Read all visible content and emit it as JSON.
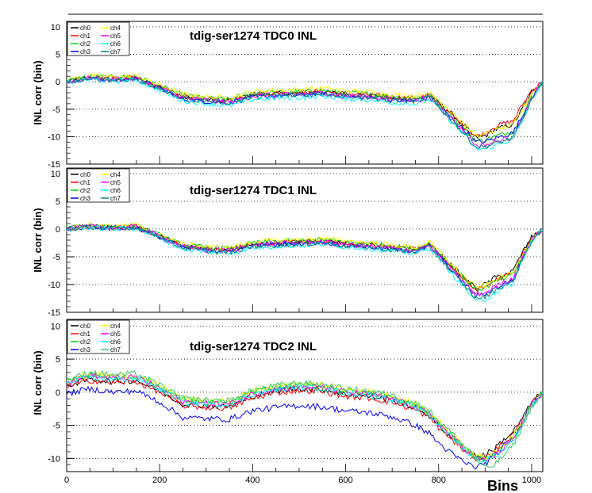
{
  "chart_data": [
    {
      "type": "line",
      "title": "tdig-ser1274 TDC0 INL",
      "ylabel": "INL corr (bin)",
      "xlabel": "",
      "xlim": [
        0,
        1024
      ],
      "ylim": [
        -15,
        11
      ],
      "yticks": [
        -15,
        -10,
        -5,
        0,
        5,
        10
      ],
      "grid": "horizontal-dotted",
      "legend": {
        "placement": "top-left",
        "entries": [
          "ch0",
          "ch1",
          "ch2",
          "ch3",
          "ch4",
          "ch5",
          "ch6",
          "ch7"
        ]
      },
      "x": [
        0,
        50,
        100,
        150,
        200,
        250,
        300,
        350,
        400,
        450,
        500,
        550,
        600,
        650,
        700,
        750,
        780,
        800,
        830,
        860,
        880,
        900,
        920,
        940,
        960,
        980,
        1000,
        1024
      ],
      "series": [
        {
          "name": "ch0",
          "color": "#000000",
          "values": [
            0,
            0.8,
            0.5,
            0.7,
            -1.0,
            -2.8,
            -3.2,
            -3.5,
            -2.3,
            -2.2,
            -2.1,
            -1.8,
            -2.3,
            -2.5,
            -3.0,
            -3.2,
            -2.5,
            -3.8,
            -6.0,
            -8.5,
            -10.2,
            -9.8,
            -8.8,
            -8.2,
            -7.8,
            -5.0,
            -2.0,
            0
          ]
        },
        {
          "name": "ch1",
          "color": "#ff0000",
          "values": [
            0,
            0.8,
            0.6,
            0.8,
            -1.0,
            -2.7,
            -3.2,
            -3.4,
            -2.2,
            -2.0,
            -2.0,
            -1.7,
            -2.2,
            -2.4,
            -2.8,
            -3.0,
            -2.4,
            -3.9,
            -6.2,
            -8.6,
            -10.0,
            -9.3,
            -8.2,
            -7.6,
            -7.2,
            -4.2,
            -1.5,
            0
          ]
        },
        {
          "name": "ch2",
          "color": "#00cc00",
          "values": [
            0.2,
            1.0,
            0.8,
            1.0,
            -0.8,
            -2.5,
            -3.0,
            -3.2,
            -2.0,
            -1.9,
            -1.8,
            -1.6,
            -2.0,
            -2.2,
            -2.7,
            -2.9,
            -2.3,
            -4.0,
            -6.5,
            -9.0,
            -10.8,
            -10.6,
            -10.0,
            -9.5,
            -9.0,
            -6.0,
            -2.5,
            0
          ]
        },
        {
          "name": "ch3",
          "color": "#0000ff",
          "values": [
            0,
            0.6,
            0.3,
            0.5,
            -1.2,
            -3.2,
            -3.6,
            -3.9,
            -2.8,
            -2.6,
            -2.5,
            -2.2,
            -2.7,
            -2.9,
            -3.4,
            -3.6,
            -2.9,
            -4.4,
            -6.8,
            -9.2,
            -11.0,
            -10.9,
            -10.4,
            -9.8,
            -9.3,
            -6.3,
            -2.8,
            0
          ]
        },
        {
          "name": "ch4",
          "color": "#ffff00",
          "values": [
            0.3,
            1.1,
            0.9,
            1.1,
            -0.6,
            -2.2,
            -2.7,
            -3.0,
            -1.7,
            -1.5,
            -1.4,
            -1.2,
            -1.6,
            -1.8,
            -2.3,
            -2.6,
            -2.0,
            -3.3,
            -5.6,
            -8.2,
            -9.8,
            -9.6,
            -8.9,
            -8.4,
            -7.9,
            -5.2,
            -2.1,
            0
          ]
        },
        {
          "name": "ch5",
          "color": "#ff00ff",
          "values": [
            0,
            0.7,
            0.4,
            0.6,
            -1.1,
            -3.0,
            -3.4,
            -3.7,
            -2.6,
            -2.4,
            -2.3,
            -2.0,
            -2.5,
            -2.7,
            -3.2,
            -3.4,
            -2.7,
            -4.4,
            -7.0,
            -9.6,
            -11.6,
            -11.5,
            -11.0,
            -10.5,
            -10.0,
            -6.8,
            -3.0,
            0
          ]
        },
        {
          "name": "ch6",
          "color": "#00ffff",
          "values": [
            -0.2,
            0.4,
            0.1,
            0.3,
            -1.5,
            -3.5,
            -4.0,
            -4.4,
            -3.2,
            -3.0,
            -2.9,
            -2.6,
            -3.1,
            -3.3,
            -3.8,
            -4.0,
            -3.2,
            -4.8,
            -7.5,
            -10.2,
            -12.3,
            -12.2,
            -11.7,
            -11.0,
            -10.5,
            -7.2,
            -3.2,
            -0.2
          ]
        },
        {
          "name": "ch7",
          "color": "#008080",
          "values": [
            0,
            0.6,
            0.3,
            0.5,
            -1.3,
            -3.1,
            -3.5,
            -3.8,
            -2.7,
            -2.5,
            -2.4,
            -2.1,
            -2.6,
            -2.8,
            -3.3,
            -3.5,
            -2.8,
            -4.6,
            -7.2,
            -9.9,
            -11.9,
            -11.8,
            -11.3,
            -10.8,
            -10.2,
            -7.0,
            -3.1,
            0
          ]
        }
      ]
    },
    {
      "type": "line",
      "title": "tdig-ser1274 TDC1 INL",
      "ylabel": "INL corr (bin)",
      "xlabel": "",
      "xlim": [
        0,
        1024
      ],
      "ylim": [
        -15,
        11
      ],
      "yticks": [
        -15,
        -10,
        -5,
        0,
        5,
        10
      ],
      "grid": "horizontal-dotted",
      "legend": {
        "placement": "top-left",
        "entries": [
          "ch0",
          "ch1",
          "ch2",
          "ch3",
          "ch4",
          "ch5",
          "ch6",
          "ch7"
        ]
      },
      "x": [
        0,
        50,
        100,
        150,
        200,
        250,
        300,
        350,
        400,
        450,
        500,
        550,
        600,
        650,
        700,
        750,
        780,
        800,
        830,
        860,
        880,
        900,
        920,
        940,
        960,
        980,
        1000,
        1024
      ],
      "series": [
        {
          "name": "ch0",
          "color": "#000000",
          "values": [
            0,
            0.5,
            0.2,
            0.4,
            -1.3,
            -3.1,
            -3.6,
            -3.8,
            -2.8,
            -2.5,
            -2.4,
            -2.1,
            -2.7,
            -2.9,
            -3.4,
            -3.8,
            -2.8,
            -4.2,
            -6.8,
            -9.2,
            -10.6,
            -10.0,
            -8.8,
            -8.2,
            -7.6,
            -4.2,
            -1.5,
            0
          ]
        },
        {
          "name": "ch1",
          "color": "#ff0000",
          "values": [
            0,
            0.5,
            0.2,
            0.4,
            -1.3,
            -3.1,
            -3.6,
            -3.8,
            -2.7,
            -2.5,
            -2.3,
            -2.1,
            -2.6,
            -2.9,
            -3.3,
            -3.7,
            -2.8,
            -4.4,
            -7.0,
            -9.5,
            -11.0,
            -10.5,
            -9.3,
            -8.6,
            -8.0,
            -4.5,
            -1.7,
            0
          ]
        },
        {
          "name": "ch2",
          "color": "#00cc00",
          "values": [
            0.1,
            0.7,
            0.4,
            0.6,
            -1.1,
            -2.9,
            -3.3,
            -3.5,
            -2.5,
            -2.2,
            -2.1,
            -1.9,
            -2.3,
            -2.6,
            -3.1,
            -3.5,
            -2.6,
            -4.2,
            -6.8,
            -9.3,
            -10.9,
            -10.6,
            -9.6,
            -8.9,
            -8.3,
            -4.8,
            -1.9,
            0
          ]
        },
        {
          "name": "ch3",
          "color": "#0000ff",
          "values": [
            0,
            0.4,
            0.1,
            0.3,
            -1.4,
            -3.3,
            -3.8,
            -4.1,
            -3.0,
            -2.8,
            -2.6,
            -2.4,
            -2.9,
            -3.2,
            -3.7,
            -4.0,
            -3.1,
            -4.8,
            -7.6,
            -10.2,
            -12.0,
            -11.7,
            -10.7,
            -9.9,
            -9.2,
            -5.3,
            -2.1,
            0
          ]
        },
        {
          "name": "ch4",
          "color": "#ffff00",
          "values": [
            0.2,
            0.8,
            0.5,
            0.7,
            -1.0,
            -2.7,
            -3.2,
            -3.4,
            -2.3,
            -2.0,
            -1.9,
            -1.7,
            -2.1,
            -2.4,
            -2.9,
            -3.3,
            -2.4,
            -4.0,
            -6.5,
            -9.0,
            -10.5,
            -10.2,
            -9.2,
            -8.5,
            -7.9,
            -4.5,
            -1.8,
            0
          ]
        },
        {
          "name": "ch5",
          "color": "#ff00ff",
          "values": [
            0,
            0.5,
            0.2,
            0.4,
            -1.3,
            -3.2,
            -3.7,
            -3.9,
            -2.9,
            -2.6,
            -2.5,
            -2.3,
            -2.8,
            -3.1,
            -3.5,
            -3.9,
            -3.0,
            -4.7,
            -7.5,
            -10.1,
            -11.8,
            -11.5,
            -10.4,
            -9.6,
            -8.9,
            -5.1,
            -2.0,
            0
          ]
        },
        {
          "name": "ch6",
          "color": "#00ffff",
          "values": [
            -0.2,
            0.3,
            0.0,
            0.2,
            -1.6,
            -3.6,
            -4.1,
            -4.4,
            -3.4,
            -3.1,
            -3.0,
            -2.7,
            -3.2,
            -3.5,
            -4.0,
            -4.4,
            -3.4,
            -5.2,
            -8.2,
            -11.0,
            -13.0,
            -12.7,
            -11.5,
            -10.6,
            -9.8,
            -5.6,
            -2.3,
            -0.2
          ]
        },
        {
          "name": "ch7",
          "color": "#008080",
          "values": [
            0,
            0.4,
            0.1,
            0.3,
            -1.4,
            -3.4,
            -3.9,
            -4.2,
            -3.1,
            -2.9,
            -2.7,
            -2.5,
            -3.0,
            -3.3,
            -3.8,
            -4.1,
            -3.2,
            -5.0,
            -7.9,
            -10.6,
            -12.5,
            -12.2,
            -11.1,
            -10.2,
            -9.5,
            -5.4,
            -2.2,
            0
          ]
        }
      ]
    },
    {
      "type": "line",
      "title": "tdig-ser1274 TDC2 INL",
      "ylabel": "INL corr (bin)",
      "xlabel": "Bins",
      "xlim": [
        0,
        1024
      ],
      "ylim": [
        -12,
        11
      ],
      "yticks": [
        -10,
        -5,
        0,
        5,
        10
      ],
      "xticks": [
        0,
        200,
        400,
        600,
        800,
        1000
      ],
      "grid": "horizontal-dotted",
      "legend": {
        "placement": "top-left",
        "entries": [
          "ch0",
          "ch1",
          "ch2",
          "ch3",
          "ch4",
          "ch5",
          "ch6",
          "ch7"
        ]
      },
      "x": [
        0,
        50,
        100,
        150,
        200,
        250,
        300,
        350,
        400,
        450,
        500,
        550,
        600,
        650,
        700,
        750,
        780,
        800,
        830,
        860,
        880,
        900,
        920,
        940,
        960,
        980,
        1000,
        1024
      ],
      "series": [
        {
          "name": "ch0",
          "color": "#000000",
          "values": [
            1.0,
            2.0,
            1.6,
            1.8,
            0.2,
            -1.8,
            -2.0,
            -2.2,
            -0.6,
            0.2,
            0.6,
            0.4,
            -0.3,
            -0.6,
            -1.2,
            -2.4,
            -3.5,
            -5.0,
            -7.0,
            -8.8,
            -9.6,
            -9.5,
            -8.5,
            -7.2,
            -6.0,
            -4.0,
            -1.5,
            0
          ]
        },
        {
          "name": "ch1",
          "color": "#ff0000",
          "values": [
            0.8,
            1.8,
            1.4,
            1.6,
            0.0,
            -2.0,
            -2.3,
            -2.4,
            -0.9,
            -0.1,
            0.3,
            0.1,
            -0.6,
            -0.9,
            -1.5,
            -2.7,
            -3.8,
            -5.3,
            -7.3,
            -9.1,
            -10.0,
            -9.9,
            -8.9,
            -7.6,
            -6.4,
            -4.3,
            -1.7,
            0
          ]
        },
        {
          "name": "ch2",
          "color": "#00cc00",
          "values": [
            1.5,
            2.6,
            2.2,
            2.4,
            0.8,
            -1.2,
            -1.5,
            -1.6,
            0.0,
            0.7,
            1.1,
            0.9,
            0.2,
            -0.1,
            -0.8,
            -2.0,
            -3.1,
            -4.6,
            -6.6,
            -8.6,
            -9.8,
            -10.1,
            -9.4,
            -8.2,
            -7.0,
            -4.6,
            -1.9,
            0
          ]
        },
        {
          "name": "ch3",
          "color": "#0000ff",
          "values": [
            -0.2,
            0.5,
            0.0,
            0.2,
            -1.5,
            -3.8,
            -4.0,
            -4.1,
            -2.8,
            -2.3,
            -2.0,
            -2.2,
            -2.8,
            -3.1,
            -3.7,
            -5.0,
            -6.2,
            -7.7,
            -9.4,
            -10.8,
            -11.3,
            -10.8,
            -9.6,
            -8.2,
            -6.8,
            -4.5,
            -1.8,
            0
          ]
        },
        {
          "name": "ch4",
          "color": "#ffff00",
          "values": [
            1.6,
            2.8,
            2.4,
            2.6,
            1.0,
            -1.0,
            -1.3,
            -1.4,
            0.2,
            0.9,
            1.3,
            1.1,
            0.4,
            0.1,
            -0.6,
            -1.8,
            -2.9,
            -4.4,
            -6.4,
            -8.4,
            -9.6,
            -9.9,
            -9.2,
            -8.0,
            -6.8,
            -4.5,
            -1.8,
            0
          ]
        },
        {
          "name": "ch5",
          "color": "#ff00ff",
          "values": [
            1.4,
            2.5,
            2.1,
            2.3,
            0.6,
            -1.4,
            -1.7,
            -1.8,
            -0.2,
            0.5,
            0.9,
            0.7,
            0.0,
            -0.3,
            -1.0,
            -2.2,
            -3.3,
            -4.8,
            -6.8,
            -8.8,
            -10.0,
            -10.3,
            -9.6,
            -8.4,
            -7.2,
            -4.8,
            -2.0,
            0
          ]
        },
        {
          "name": "ch6",
          "color": "#00ffff",
          "values": [
            1.2,
            2.3,
            1.9,
            2.1,
            0.5,
            -1.5,
            -1.8,
            -1.9,
            -0.3,
            0.4,
            0.8,
            0.6,
            -0.1,
            -0.4,
            -1.1,
            -2.3,
            -3.4,
            -4.9,
            -6.9,
            -8.9,
            -10.1,
            -10.4,
            -9.7,
            -8.5,
            -7.3,
            -4.9,
            -2.0,
            0
          ]
        },
        {
          "name": "ch7",
          "color": "#33cc66",
          "values": [
            1.8,
            3.0,
            2.6,
            2.8,
            1.1,
            -0.9,
            -1.2,
            -1.3,
            0.3,
            1.0,
            1.4,
            1.2,
            0.5,
            0.2,
            -0.5,
            -1.7,
            -2.8,
            -4.3,
            -6.3,
            -8.5,
            -10.2,
            -11.5,
            -11.0,
            -9.6,
            -8.0,
            -5.2,
            -2.2,
            0
          ]
        }
      ]
    }
  ]
}
